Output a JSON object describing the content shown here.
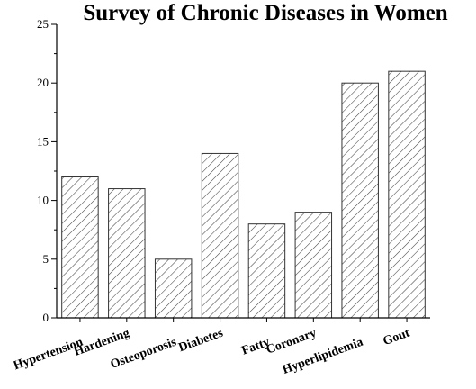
{
  "chart_data": {
    "type": "bar",
    "title": "Survey of Chronic Diseases in Women",
    "xlabel": "",
    "ylabel": "",
    "categories": [
      "Hypertension",
      "Hardening",
      "Osteoporosis",
      "Diabetes",
      "Fatty",
      "Coronary",
      "Hyperlipidemia",
      "Gout"
    ],
    "values": [
      12,
      11,
      5,
      14,
      8,
      9,
      20,
      21
    ],
    "ylim": [
      0,
      25
    ],
    "yticks": [
      0,
      5,
      10,
      15,
      20,
      25
    ],
    "grid": false,
    "legend": "none",
    "bar_fill": "diagonal-hatch",
    "colors": {
      "bar_stroke": "#333333",
      "axis": "#000000",
      "background": "#ffffff"
    }
  }
}
